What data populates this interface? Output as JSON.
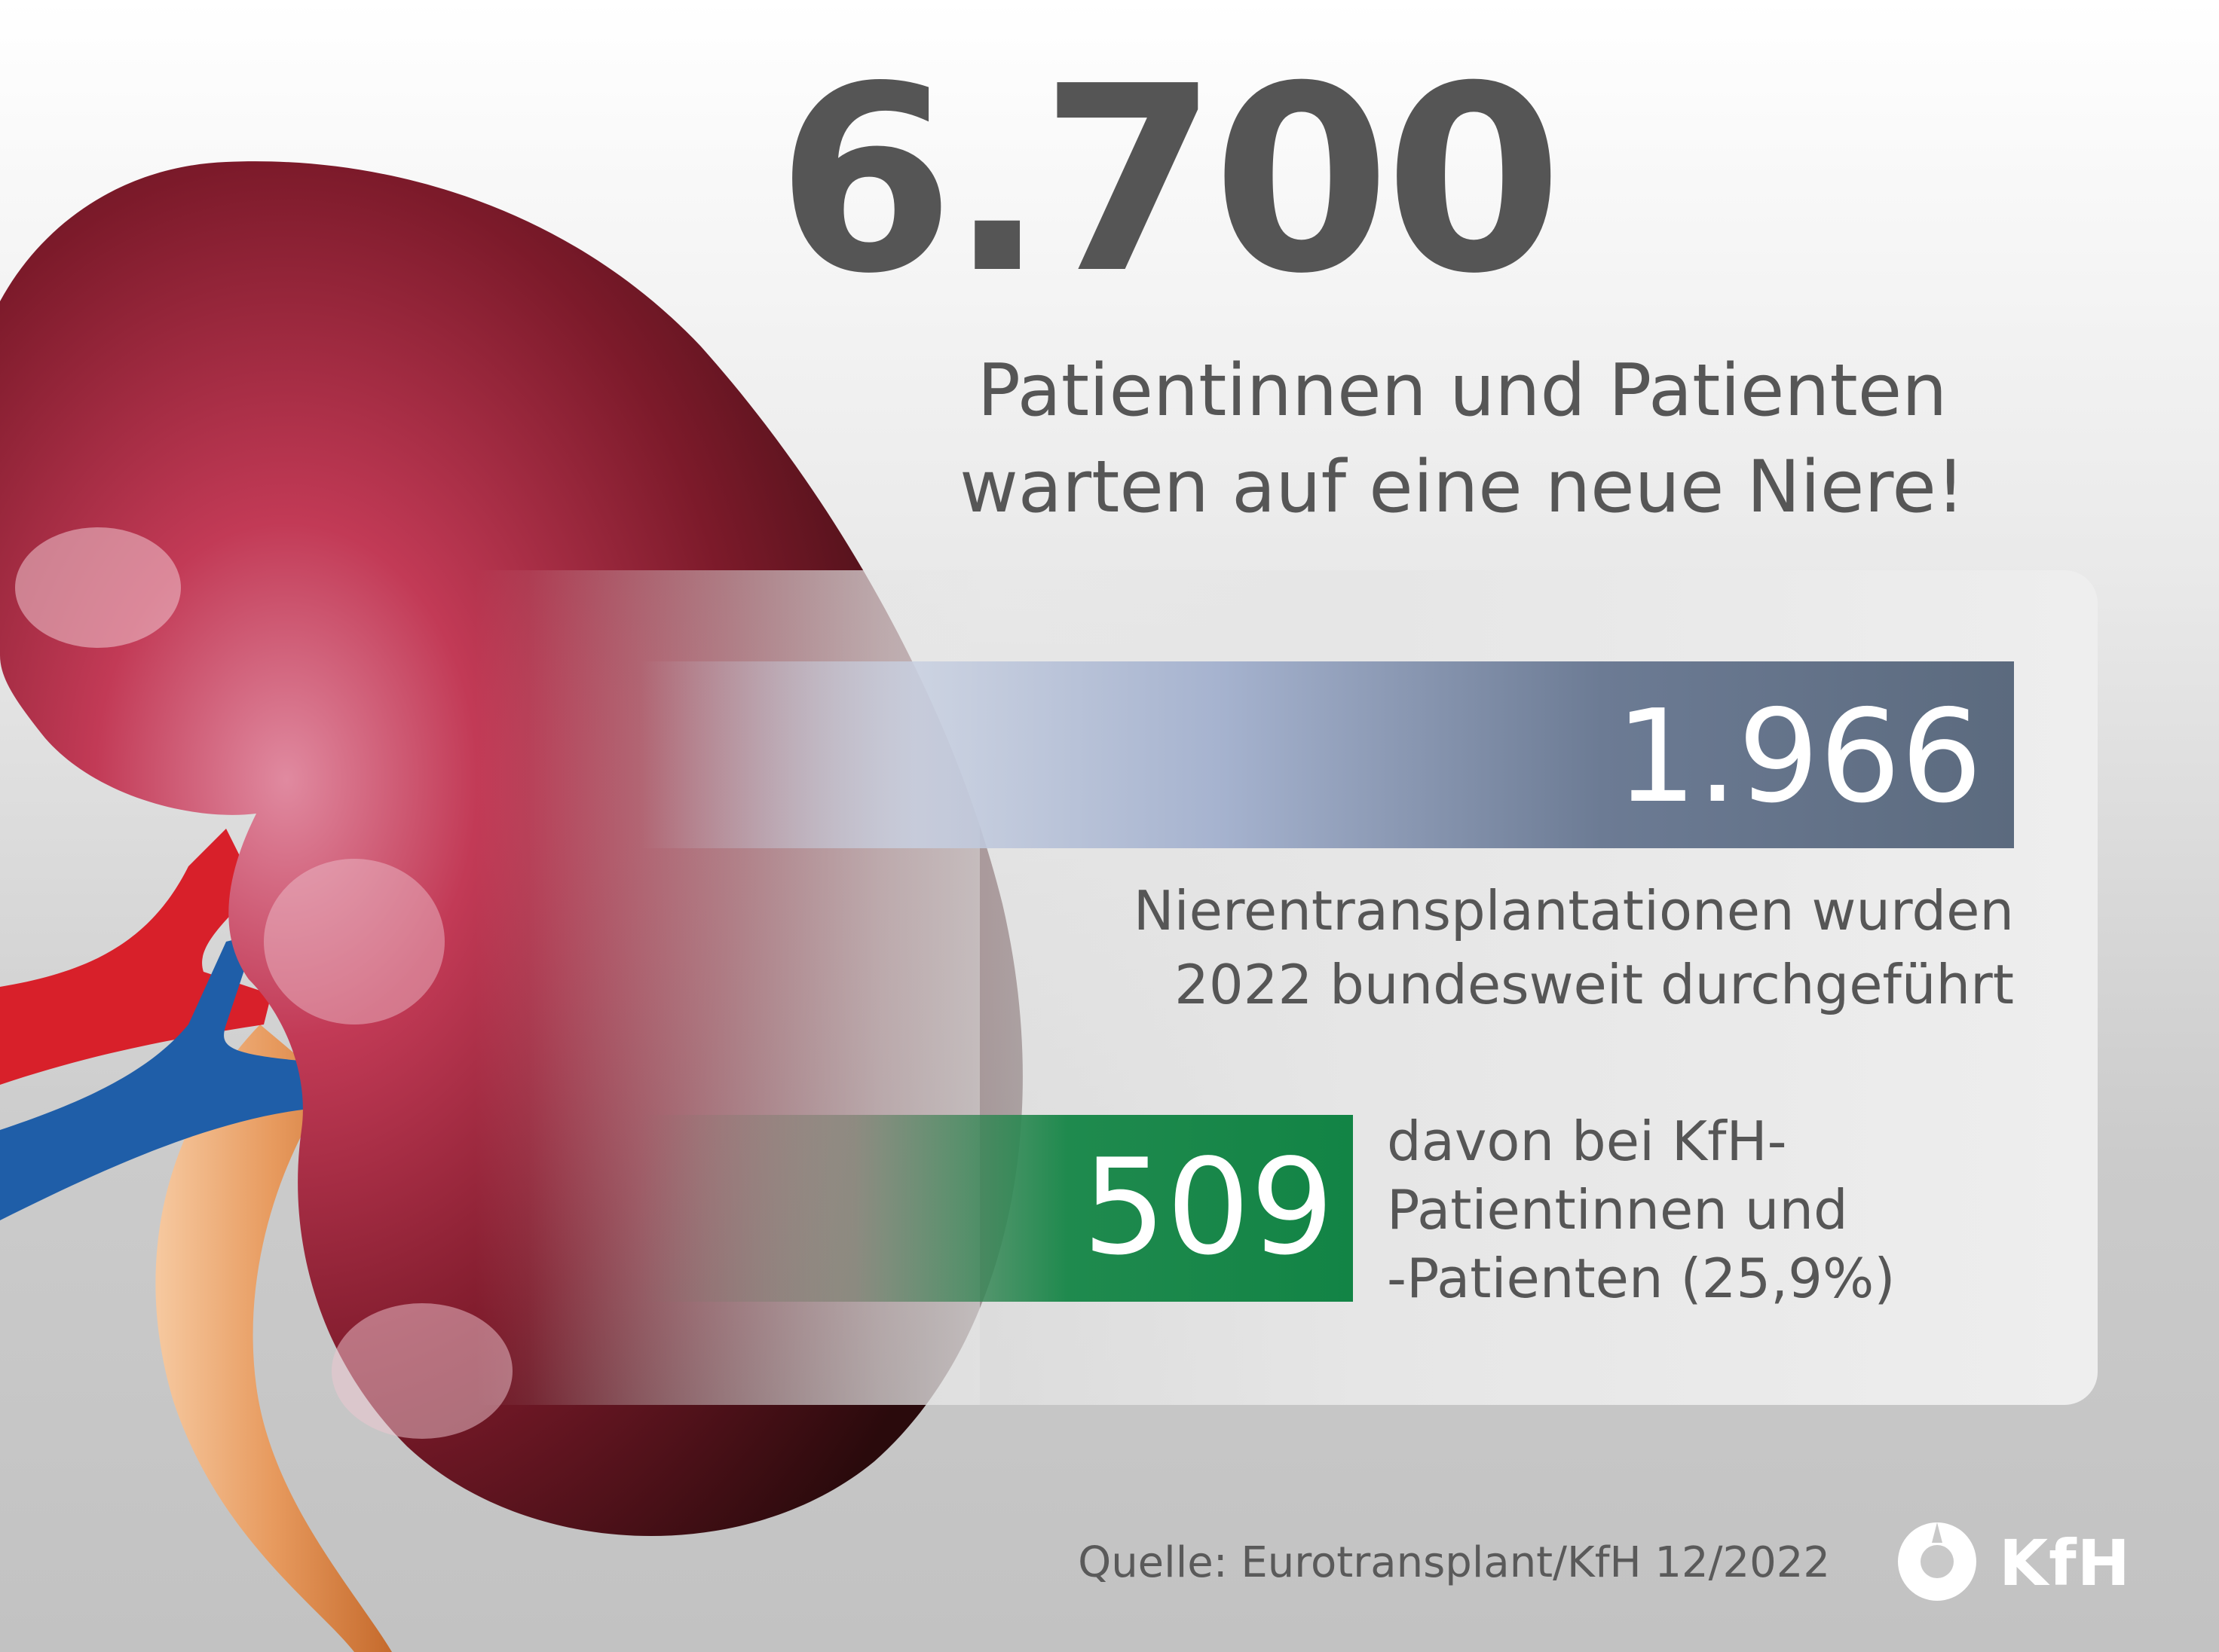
{
  "headline": {
    "number": "6.700",
    "line1": "Patientinnen und Patienten",
    "line2": "warten auf eine neue Niere!"
  },
  "stat_total": {
    "value": "1.966",
    "caption_line1": "Nierentransplantationen wurden",
    "caption_line2": "2022 bundesweit durchgeführt"
  },
  "stat_kfh": {
    "value": "509",
    "caption_line1": "davon bei KfH-",
    "caption_line2": "Patientinnen und",
    "caption_line3": "-Patienten (25,9%)"
  },
  "footer": {
    "source": "Quelle: Eurotransplant/KfH 12/2022",
    "logo_text": "KfH"
  },
  "colors": {
    "text_gray": "#565656",
    "bar_blue": "#5b6a7e",
    "bar_green": "#128445",
    "kidney_red": "#8b1c30"
  },
  "icons": {
    "illustration": "kidney-illustration",
    "logo": "kfh-logo-icon"
  }
}
